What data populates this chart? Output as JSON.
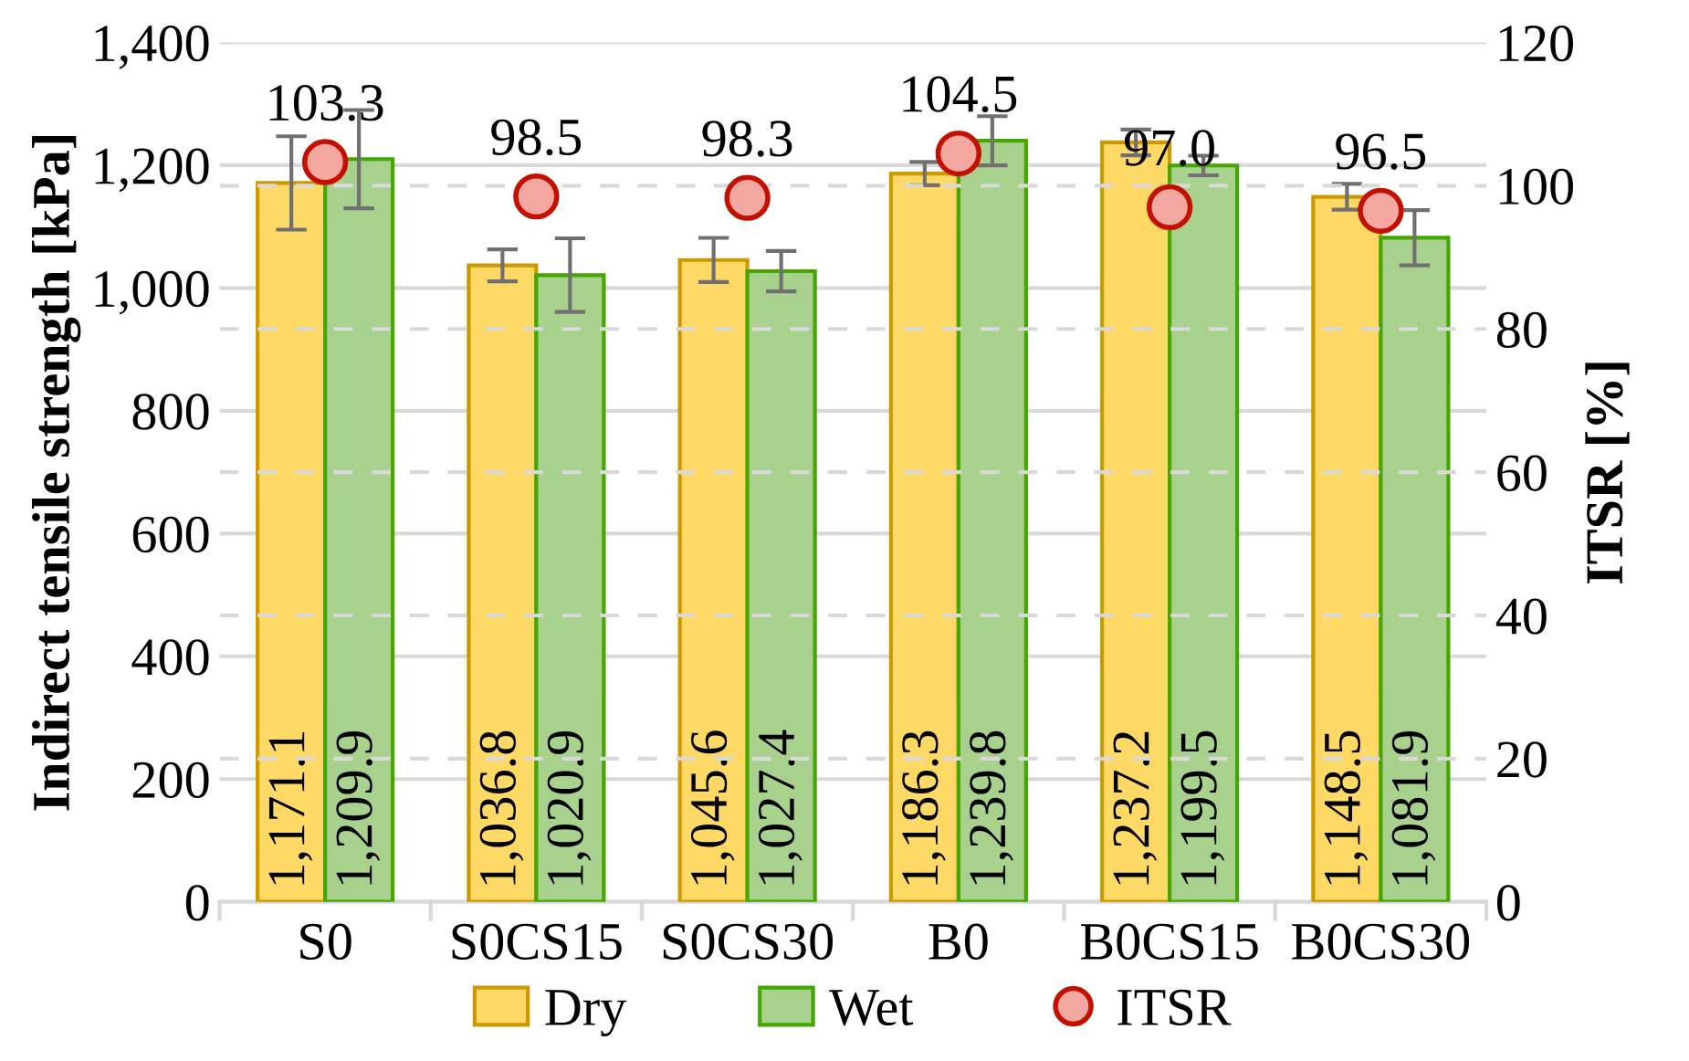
{
  "chart_data": {
    "type": "bar",
    "ylabel": "Indirect tensile strength [kPa]",
    "y2label": "ITSR [%]",
    "categories": [
      "S0",
      "S0CS15",
      "S0CS30",
      "B0",
      "B0CS15",
      "B0CS30"
    ],
    "series": [
      {
        "name": "Dry",
        "color": "#ffd966",
        "values": [
          1171.1,
          1036.8,
          1045.6,
          1186.3,
          1237.2,
          1148.5
        ],
        "value_labels": [
          "1,171.1",
          "1,036.8",
          "1,045.6",
          "1,186.3",
          "1,237.2",
          "1,148.5"
        ],
        "errors": [
          76,
          26,
          36,
          19,
          21,
          21
        ]
      },
      {
        "name": "Wet",
        "color": "#a9d18e",
        "values": [
          1209.9,
          1020.9,
          1027.4,
          1239.8,
          1199.5,
          1081.9
        ],
        "value_labels": [
          "1,209.9",
          "1,020.9",
          "1,027.4",
          "1,239.8",
          "1,199.5",
          "1,081.9"
        ],
        "errors": [
          80,
          60,
          33,
          40,
          16,
          45
        ]
      },
      {
        "name": "ITSR",
        "type": "scatter",
        "axis": "y2",
        "color": "#f4a7a0",
        "values": [
          103.3,
          98.5,
          98.3,
          104.5,
          97.0,
          96.5
        ],
        "value_labels": [
          "103.3",
          "98.5",
          "98.3",
          "104.5",
          "97.0",
          "96.5"
        ]
      }
    ],
    "ylim": [
      0,
      1400
    ],
    "yticks": [
      0,
      {
        "value": 200,
        "label": "200"
      },
      {
        "value": 400,
        "label": "400"
      },
      {
        "value": 600,
        "label": "600"
      },
      {
        "value": 800,
        "label": "800"
      },
      {
        "value": 1000,
        "label": "1,000"
      },
      {
        "value": 1200,
        "label": "1,200"
      },
      {
        "value": 1400,
        "label": "1,400"
      }
    ],
    "y2lim": [
      0,
      120
    ],
    "y2ticks": [
      0,
      20,
      40,
      60,
      80,
      100,
      120
    ],
    "grid": true,
    "legend": "bottom",
    "marker": "circle"
  }
}
